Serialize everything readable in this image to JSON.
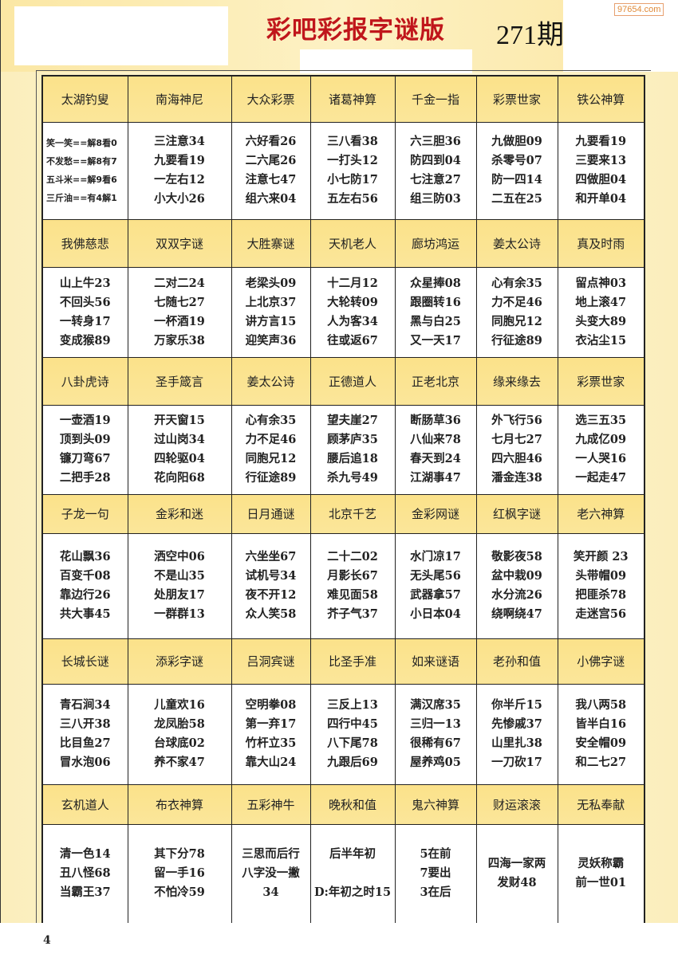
{
  "header": {
    "title": "彩吧彩报字谜版",
    "issue": "271期",
    "watermark": "97654.com"
  },
  "colors": {
    "title": "#c0161b",
    "header_fill": "#fbe38a",
    "background": "#fdf6d6"
  },
  "sections": [
    {
      "headers": [
        "太湖钓叟",
        "南海神尼",
        "大众彩票",
        "诸葛神算",
        "千金一指",
        "彩票世家",
        "铁公神算"
      ],
      "cells": [
        [
          "笑一笑==解8看0",
          "不发愁==解8有7",
          "五斗米==解9看6",
          "三斤油==有4解1"
        ],
        [
          "三注意34",
          "九要看19",
          "一左右12",
          "小大小26"
        ],
        [
          "六好看26",
          "二六尾26",
          "注意七47",
          "组六来04"
        ],
        [
          "三八看38",
          "一打头12",
          "小七防17",
          "五左右56"
        ],
        [
          "六三胆36",
          "防四到04",
          "七注意27",
          "组三防03"
        ],
        [
          "九做胆09",
          "杀零号07",
          "防一四14",
          "二五在25"
        ],
        [
          "九要看19",
          "三要来13",
          "四做胆04",
          "和开单04"
        ]
      ]
    },
    {
      "headers": [
        "我佛慈悲",
        "双双字谜",
        "大胜寨谜",
        "天机老人",
        "廊坊鸿运",
        "姜太公诗",
        "真及时雨"
      ],
      "cells": [
        [
          "山上牛23",
          "不回头56",
          "一转身17",
          "变成猴89"
        ],
        [
          "二对二24",
          "七随七27",
          "一杯酒19",
          "万家乐38"
        ],
        [
          "老梁头09",
          "上北京37",
          "讲方言15",
          "迎笑声36"
        ],
        [
          "十二月12",
          "大轮转09",
          "人为客34",
          "往或返67"
        ],
        [
          "众星捧08",
          "跟圈转16",
          "黑与白25",
          "又一天17"
        ],
        [
          "心有余35",
          "力不足46",
          "同胞兄12",
          "行征途89"
        ],
        [
          "留点神03",
          "地上滚47",
          "头变大89",
          "衣沾尘15"
        ]
      ]
    },
    {
      "headers": [
        "八卦虎诗",
        "圣手箴言",
        "姜太公诗",
        "正德道人",
        "正老北京",
        "缘来缘去",
        "彩票世家"
      ],
      "cells": [
        [
          "一壶酒19",
          "顶到头09",
          "镰刀弯67",
          "二把手28"
        ],
        [
          "开天窗15",
          "过山岗34",
          "四轮驱04",
          "花向阳68"
        ],
        [
          "心有余35",
          "力不足46",
          "同胞兄12",
          "行征途89"
        ],
        [
          "望夫崖27",
          "顾茅庐35",
          "腰后追18",
          "杀九号49"
        ],
        [
          "断肠草36",
          "八仙来78",
          "春天到24",
          "江湖事47"
        ],
        [
          "外飞行56",
          "七月七27",
          "四六胆46",
          "潘金连38"
        ],
        [
          "选三五35",
          "九成亿09",
          "一人哭16",
          "一起走47"
        ]
      ]
    },
    {
      "headers": [
        "子龙一句",
        "金彩和迷",
        "日月通谜",
        "北京千艺",
        "金彩网谜",
        "红枫字谜",
        "老六神算"
      ],
      "cells": [
        [
          "花山飘36",
          "百变千08",
          "靠边行26",
          "共大事45"
        ],
        [
          "洒空中06",
          "不是山35",
          "处朋友17",
          "一群群13"
        ],
        [
          "六坐坐67",
          "试机号34",
          "夜不开12",
          "众人笑58"
        ],
        [
          "二十二02",
          "月影长67",
          "难见面58",
          "芥子气37"
        ],
        [
          "水门凉17",
          "无头尾56",
          "武器拿57",
          "小日本04"
        ],
        [
          "敬影夜58",
          "盆中栽09",
          "水分流26",
          "绕啊绕47"
        ],
        [
          "笑开颜 23",
          "头带帽09",
          "把匪杀78",
          "走迷宫56"
        ]
      ]
    },
    {
      "headers": [
        "长城长谜",
        "添彩字谜",
        "吕洞宾谜",
        "比圣手准",
        "如来谜语",
        "老孙和值",
        "小佛字谜"
      ],
      "cells": [
        [
          "青石涧34",
          "三八开38",
          "比目鱼27",
          "冒水泡06"
        ],
        [
          "儿童欢16",
          "龙凤胎58",
          "台球底02",
          "养不家47"
        ],
        [
          "空明拳08",
          "第一弃17",
          "竹杆立35",
          "靠大山24"
        ],
        [
          "三反上13",
          "四行中45",
          "八下尾78",
          "九跟后69"
        ],
        [
          "满汉席35",
          "三归一13",
          "很稀有67",
          "屋养鸡05"
        ],
        [
          "你半斤15",
          "先惨戚37",
          "山里扎38",
          "一刀砍17"
        ],
        [
          "我八两58",
          "皆半白16",
          "安全帽09",
          "和二七27"
        ]
      ]
    },
    {
      "headers": [
        "玄机道人",
        "布衣神算",
        "五彩神牛",
        "晚秋和值",
        "鬼六神算",
        "财运滚滚",
        "无私奉献"
      ],
      "cells": [
        [
          "清一色14",
          "丑八怪68",
          "当霸王37"
        ],
        [
          "其下分78",
          "留一手16",
          "不怕冷59"
        ],
        [
          "三思而后行",
          "八字没一撇",
          "34"
        ],
        [
          "后半年初",
          "",
          "D:年初之时15"
        ],
        [
          "5在前",
          "7要出",
          "3在后"
        ],
        [
          "四海一家两",
          "发财48"
        ],
        [
          "灵妖称霸",
          "前一世01"
        ]
      ]
    }
  ],
  "footer_fragment": "4"
}
